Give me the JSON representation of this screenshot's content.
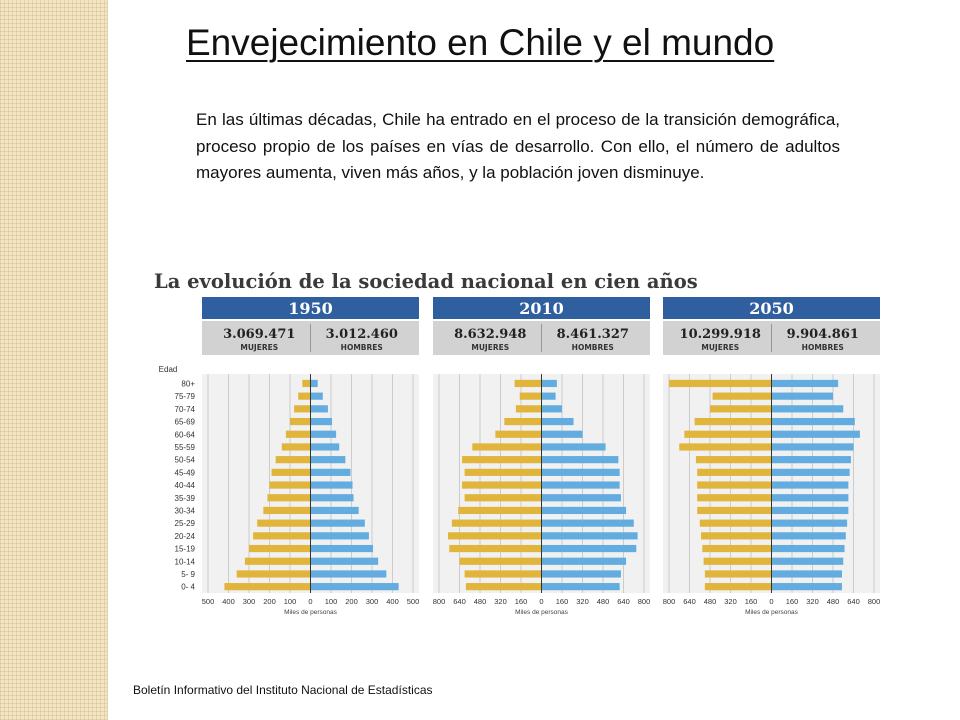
{
  "slide": {
    "title": "Envejecimiento en Chile y el mundo",
    "intro": "En las últimas décadas, Chile ha entrado en el proceso de la transición demográfica, proceso propio de los países en vías de desarrollo. Con ello, el número de adultos mayores aumenta, viven más años, y la población joven disminuye.",
    "footer": "Boletín Informativo del Instituto Nacional de Estadísticas"
  },
  "colors": {
    "women": "#e1b43c",
    "men": "#62ace0",
    "header": "#2f5f9e",
    "totals_bg": "#d2d2d2",
    "plot_bg": "#f1f1f1",
    "grid": "#b4b4b4"
  },
  "chart_data": {
    "type": "population-pyramid",
    "title": "La evolución de la sociedad nacional en cien años",
    "age_axis_label": "Edad",
    "xlabel": "Miles de personas",
    "women_label": "MUJERES",
    "men_label": "HOMBRES",
    "age_groups": [
      "0- 4",
      "5- 9",
      "10-14",
      "15-19",
      "20-24",
      "25-29",
      "30-34",
      "35-39",
      "40-44",
      "45-49",
      "50-54",
      "55-59",
      "60-64",
      "65-69",
      "70-74",
      "75-79",
      "80+"
    ],
    "panels": [
      {
        "year": "1950",
        "women_total": "3.069.471",
        "men_total": "3.012.460",
        "xlim": 500,
        "ticks": [
          "500",
          "400",
          "300",
          "200",
          "100",
          "0",
          "100",
          "200",
          "300",
          "400",
          "500"
        ],
        "women": [
          420,
          360,
          320,
          300,
          280,
          260,
          230,
          210,
          200,
          190,
          170,
          140,
          120,
          100,
          80,
          60,
          40
        ],
        "men": [
          430,
          370,
          330,
          305,
          285,
          265,
          235,
          210,
          205,
          195,
          170,
          140,
          125,
          105,
          85,
          60,
          35
        ]
      },
      {
        "year": "2010",
        "women_total": "8.632.948",
        "men_total": "8.461.327",
        "xlim": 800,
        "ticks": [
          "800",
          "640",
          "480",
          "320",
          "160",
          "0",
          "160",
          "320",
          "480",
          "640",
          "800"
        ],
        "women": [
          590,
          600,
          640,
          720,
          730,
          700,
          650,
          600,
          620,
          600,
          620,
          540,
          360,
          290,
          200,
          170,
          210
        ],
        "men": [
          610,
          620,
          660,
          740,
          750,
          720,
          660,
          620,
          610,
          610,
          600,
          500,
          320,
          250,
          160,
          110,
          120
        ]
      },
      {
        "year": "2050",
        "women_total": "10.299.918",
        "men_total": "9.904.861",
        "xlim": 800,
        "ticks": [
          "800",
          "640",
          "480",
          "320",
          "160",
          "0",
          "160",
          "320",
          "480",
          "640",
          "800"
        ],
        "women": [
          520,
          520,
          530,
          540,
          550,
          560,
          580,
          580,
          580,
          580,
          590,
          720,
          680,
          600,
          480,
          460,
          800
        ],
        "men": [
          550,
          550,
          560,
          570,
          580,
          590,
          600,
          600,
          600,
          610,
          620,
          640,
          690,
          650,
          560,
          480,
          520
        ]
      }
    ]
  }
}
